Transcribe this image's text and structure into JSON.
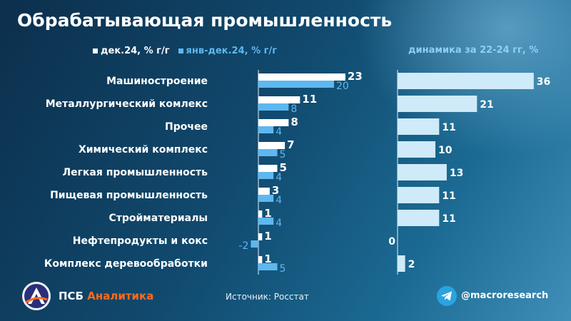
{
  "title": "Обрабатывающая промышленность",
  "legend": {
    "dec": "дек.24, % г/г",
    "year": "янв-дек.24, % г/г"
  },
  "right_title": "динамика за 22-24 гг, %",
  "footer": {
    "brand_psb": "ПСБ",
    "brand_analytics": "Аналитика",
    "source": "Источник:  Росстат",
    "telegram": "@macroresearch"
  },
  "colors": {
    "dec": "#ffffff",
    "year": "#5db8f0",
    "right": "#cfeaf8",
    "accent": "#ff6b1a"
  },
  "chart_data": {
    "type": "bar",
    "categories": [
      "Машиностроение",
      "Металлургический комлекс",
      "Прочее",
      "Химический комплекс",
      "Легкая промышленность",
      "Пищевая промышленность",
      "Стройматериалы",
      "Нефтепродукты и кокс",
      "Комплекс деревообработки"
    ],
    "series": [
      {
        "name": "дек.24, % г/г",
        "values": [
          23,
          11,
          8,
          7,
          5,
          3,
          1,
          1,
          1
        ]
      },
      {
        "name": "янв-дек.24, % г/г",
        "values": [
          20,
          8,
          4,
          5,
          4,
          4,
          4,
          -2,
          5
        ]
      }
    ],
    "right_series": {
      "name": "динамика за 22-24 гг, %",
      "values": [
        36,
        21,
        11,
        10,
        13,
        11,
        11,
        0,
        2
      ]
    }
  }
}
